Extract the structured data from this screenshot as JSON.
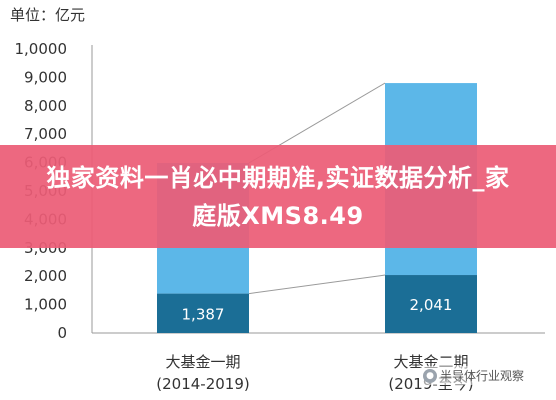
{
  "unit_label": "单位：亿元",
  "banner": {
    "text": "独家资料一肖必中期期准,实证数据分析_家庭版XMS8.49"
  },
  "watermark": {
    "text": "半导体行业观察",
    "icon": "wechat-icon"
  },
  "colors": {
    "bottom_segment": "#1b6e96",
    "top_segment": "#5cb7e8",
    "connector": "#9a9a9a",
    "axis": "#9a9a9a",
    "banner": "#ec5c76"
  },
  "chart_data": {
    "type": "bar",
    "stacked": true,
    "categories": [
      [
        "大基金一期",
        "(2014-2019)"
      ],
      [
        "大基金二期",
        "(2019-至今)"
      ]
    ],
    "series": [
      {
        "values": [
          1387,
          2041
        ],
        "labels": [
          "1,387",
          "2,041"
        ]
      },
      {
        "values": [
          4600,
          6759
        ]
      }
    ],
    "totals": [
      5987,
      8800
    ],
    "yticks": [
      0,
      1000,
      2000,
      3000,
      4000,
      5000,
      6000,
      7000,
      8000,
      9000,
      10000
    ],
    "ytick_labels": [
      "0",
      "1,000",
      "2,000",
      "3,000",
      "4,000",
      "5,000",
      "6,000",
      "7,000",
      "8,000",
      "9,000",
      "1,0000"
    ],
    "ylim": [
      0,
      10000
    ],
    "ylabel": "单位：亿元",
    "grid": false,
    "connector_lines": true
  }
}
